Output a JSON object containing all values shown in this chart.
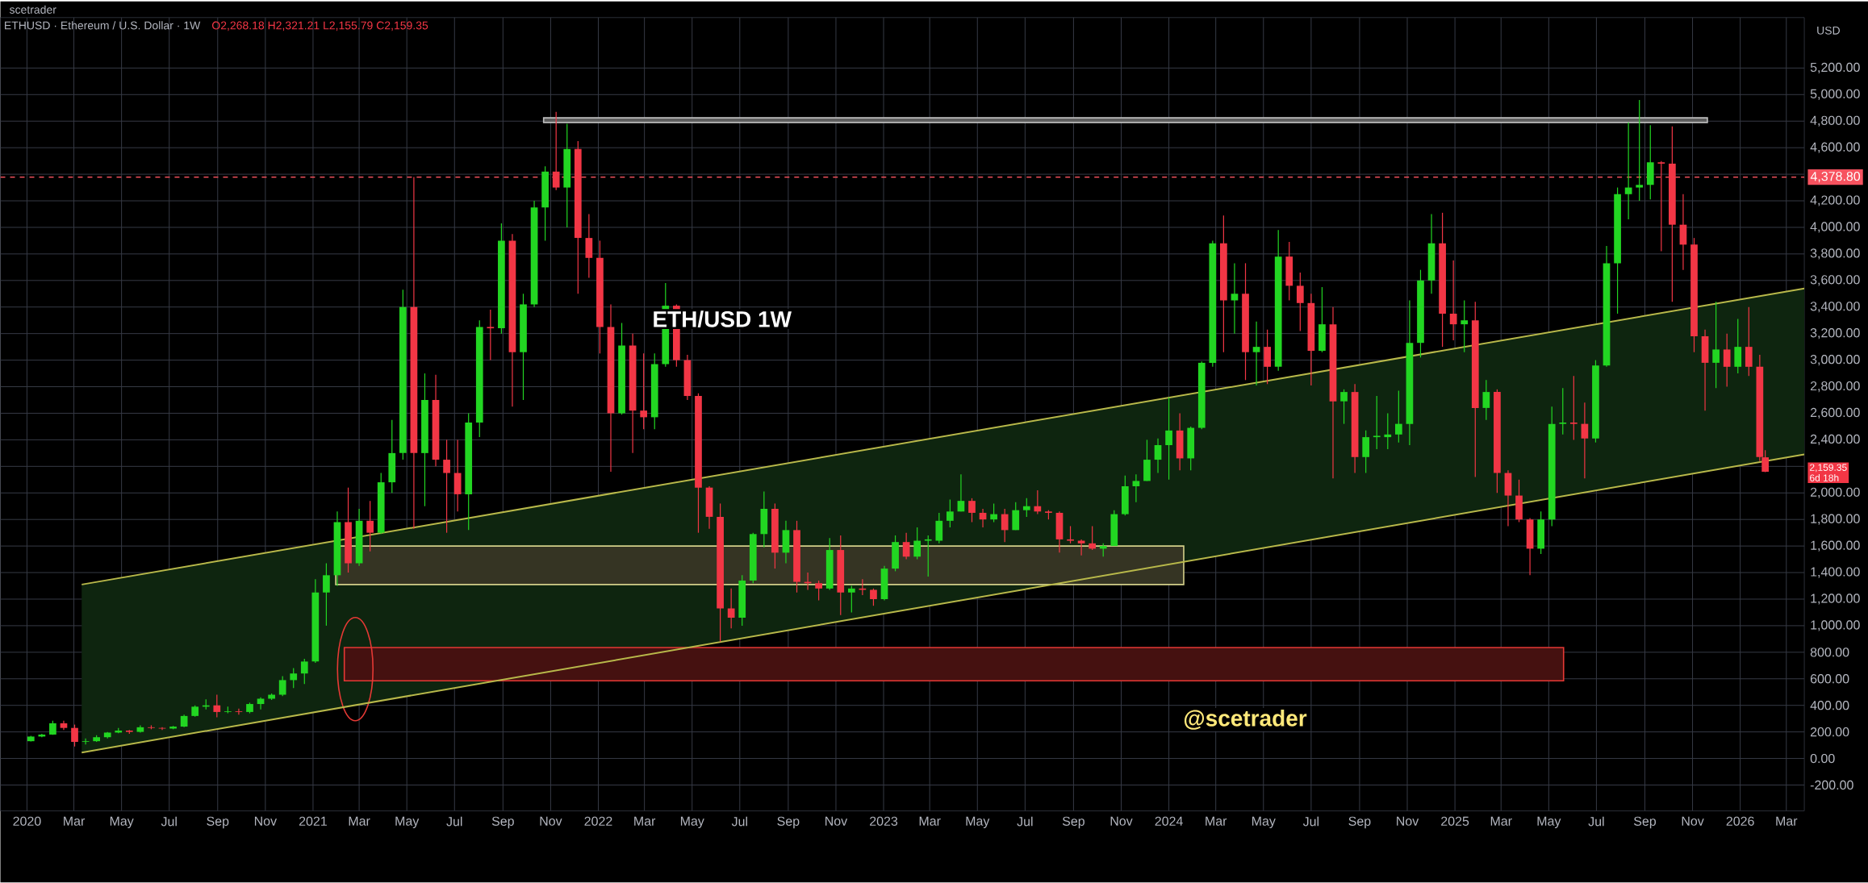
{
  "chart_data": {
    "type": "candlestick",
    "title": "ETHUSD · Ethereum / U.S. Dollar · 1W",
    "subtitle": "O2,268.18 H2,321.21 L2,155.79 C2,159.35",
    "ylabel": "USD",
    "annotations": [
      "scetrader",
      "ETH/USD  1W",
      "@scetrader",
      "2,159.35",
      "6d 18h"
    ],
    "grid": true,
    "xlim": [
      "2019-11-28",
      "2026-03-24"
    ],
    "ylim": [
      -395,
      5580
    ],
    "xticks": [
      {
        "value": "2020-01-01",
        "label": "2020"
      },
      {
        "value": "2020-03-01",
        "label": "Mar"
      },
      {
        "value": "2020-05-01",
        "label": "May"
      },
      {
        "value": "2020-07-01",
        "label": "Jul"
      },
      {
        "value": "2020-09-01",
        "label": "Sep"
      },
      {
        "value": "2020-11-01",
        "label": "Nov"
      },
      {
        "value": "2021-01-01",
        "label": "2021"
      },
      {
        "value": "2021-03-01",
        "label": "Mar"
      },
      {
        "value": "2021-05-01",
        "label": "May"
      },
      {
        "value": "2021-07-01",
        "label": "Jul"
      },
      {
        "value": "2021-09-01",
        "label": "Sep"
      },
      {
        "value": "2021-11-01",
        "label": "Nov"
      },
      {
        "value": "2022-01-01",
        "label": "2022"
      },
      {
        "value": "2022-03-01",
        "label": "Mar"
      },
      {
        "value": "2022-05-01",
        "label": "May"
      },
      {
        "value": "2022-07-01",
        "label": "Jul"
      },
      {
        "value": "2022-09-01",
        "label": "Sep"
      },
      {
        "value": "2022-11-01",
        "label": "Nov"
      },
      {
        "value": "2023-01-01",
        "label": "2023"
      },
      {
        "value": "2023-03-01",
        "label": "Mar"
      },
      {
        "value": "2023-05-01",
        "label": "May"
      },
      {
        "value": "2023-07-01",
        "label": "Jul"
      },
      {
        "value": "2023-09-01",
        "label": "Sep"
      },
      {
        "value": "2023-11-01",
        "label": "Nov"
      },
      {
        "value": "2024-01-01",
        "label": "2024"
      },
      {
        "value": "2024-03-01",
        "label": "Mar"
      },
      {
        "value": "2024-05-01",
        "label": "May"
      },
      {
        "value": "2024-07-01",
        "label": "Jul"
      },
      {
        "value": "2024-09-01",
        "label": "Sep"
      },
      {
        "value": "2024-11-01",
        "label": "Nov"
      },
      {
        "value": "2025-01-01",
        "label": "2025"
      },
      {
        "value": "2025-03-01",
        "label": "Mar"
      },
      {
        "value": "2025-05-01",
        "label": "May"
      },
      {
        "value": "2025-07-01",
        "label": "Jul"
      },
      {
        "value": "2025-09-01",
        "label": "Sep"
      },
      {
        "value": "2025-11-01",
        "label": "Nov"
      },
      {
        "value": "2026-01-01",
        "label": "2026"
      },
      {
        "value": "2026-03-01",
        "label": "Mar"
      }
    ],
    "yticks": [
      {
        "value": -200,
        "label": "-200.00"
      },
      {
        "value": 0,
        "label": "0.00"
      },
      {
        "value": 200,
        "label": "200.00"
      },
      {
        "value": 400,
        "label": "400.00"
      },
      {
        "value": 600,
        "label": "600.00"
      },
      {
        "value": 800,
        "label": "800.00"
      },
      {
        "value": 1000,
        "label": "1,000.00"
      },
      {
        "value": 1200,
        "label": "1,200.00"
      },
      {
        "value": 1400,
        "label": "1,400.00"
      },
      {
        "value": 1600,
        "label": "1,600.00"
      },
      {
        "value": 1800,
        "label": "1,800.00"
      },
      {
        "value": 2000,
        "label": "2,000.00"
      },
      {
        "value": 2200,
        "label": null
      },
      {
        "value": 2400,
        "label": "2,400.00"
      },
      {
        "value": 2600,
        "label": "2,600.00"
      },
      {
        "value": 2800,
        "label": "2,800.00"
      },
      {
        "value": 3000,
        "label": "3,000.00"
      },
      {
        "value": 3200,
        "label": "3,200.00"
      },
      {
        "value": 3400,
        "label": "3,400.00"
      },
      {
        "value": 3600,
        "label": "3,600.00"
      },
      {
        "value": 3800,
        "label": "3,800.00"
      },
      {
        "value": 4000,
        "label": "4,000.00"
      },
      {
        "value": 4200,
        "label": "4,200.00"
      },
      {
        "value": 4400,
        "label": null
      },
      {
        "value": 4600,
        "label": "4,600.00"
      },
      {
        "value": 4800,
        "label": "4,800.00"
      },
      {
        "value": 5000,
        "label": "5,000.00"
      },
      {
        "value": 5200,
        "label": "5,200.00"
      }
    ],
    "ref_lines": [
      {
        "axis": "y",
        "value": 4378.8,
        "label": "4,378.80",
        "color": "#f7525f",
        "line_style": "dashed"
      }
    ],
    "bands": [
      {
        "axis": "y",
        "from": 1310,
        "to": 1600,
        "color": "#d4d08a"
      },
      {
        "axis": "y",
        "from": 585,
        "to": 835,
        "color": "#e53935"
      },
      {
        "axis": "y",
        "from": 4790,
        "to": 4825,
        "color": "#bdbdbd"
      }
    ],
    "series": [
      {
        "type": "line",
        "color": "#b8b84a",
        "x": [
          "2020-03-11",
          "2026-03-24"
        ],
        "values": [
          1310,
          3540
        ],
        "lower": [
          45,
          2290
        ],
        "upper": [
          1310,
          3540
        ]
      },
      {
        "type": "line",
        "color": "#b8b84a",
        "x": [
          "2020-03-11",
          "2026-03-24"
        ],
        "values": [
          45,
          2290
        ]
      }
    ],
    "x": [
      "2020-01-06",
      "2020-01-20",
      "2020-02-03",
      "2020-02-17",
      "2020-03-02",
      "2020-03-16",
      "2020-03-30",
      "2020-04-13",
      "2020-04-27",
      "2020-05-11",
      "2020-05-25",
      "2020-06-08",
      "2020-06-22",
      "2020-07-06",
      "2020-07-20",
      "2020-08-03",
      "2020-08-17",
      "2020-08-31",
      "2020-09-14",
      "2020-09-28",
      "2020-10-12",
      "2020-10-26",
      "2020-11-09",
      "2020-11-23",
      "2020-12-07",
      "2020-12-21",
      "2021-01-04",
      "2021-01-18",
      "2021-02-01",
      "2021-02-15",
      "2021-03-01",
      "2021-03-15",
      "2021-03-29",
      "2021-04-12",
      "2021-04-26",
      "2021-05-10",
      "2021-05-24",
      "2021-06-07",
      "2021-06-21",
      "2021-07-05",
      "2021-07-19",
      "2021-08-02",
      "2021-08-16",
      "2021-08-30",
      "2021-09-13",
      "2021-09-27",
      "2021-10-11",
      "2021-10-25",
      "2021-11-08",
      "2021-11-22",
      "2021-12-06",
      "2021-12-20",
      "2022-01-03",
      "2022-01-17",
      "2022-01-31",
      "2022-02-14",
      "2022-02-28",
      "2022-03-14",
      "2022-03-28",
      "2022-04-11",
      "2022-04-25",
      "2022-05-09",
      "2022-05-23",
      "2022-06-06",
      "2022-06-20",
      "2022-07-04",
      "2022-07-18",
      "2022-08-01",
      "2022-08-15",
      "2022-08-29",
      "2022-09-12",
      "2022-09-26",
      "2022-10-10",
      "2022-10-24",
      "2022-11-07",
      "2022-11-21",
      "2022-12-05",
      "2022-12-19",
      "2023-01-02",
      "2023-01-16",
      "2023-01-30",
      "2023-02-13",
      "2023-02-27",
      "2023-03-13",
      "2023-03-27",
      "2023-04-10",
      "2023-04-24",
      "2023-05-08",
      "2023-05-22",
      "2023-06-05",
      "2023-06-19",
      "2023-07-03",
      "2023-07-17",
      "2023-07-31",
      "2023-08-14",
      "2023-08-28",
      "2023-09-11",
      "2023-09-25",
      "2023-10-09",
      "2023-10-23",
      "2023-11-06",
      "2023-11-20",
      "2023-12-04",
      "2023-12-18",
      "2024-01-01",
      "2024-01-15",
      "2024-01-29",
      "2024-02-12",
      "2024-02-26",
      "2024-03-11",
      "2024-03-25",
      "2024-04-08",
      "2024-04-22",
      "2024-05-06",
      "2024-05-20",
      "2024-06-03",
      "2024-06-17",
      "2024-07-01",
      "2024-07-15",
      "2024-07-29",
      "2024-08-12",
      "2024-08-26",
      "2024-09-09",
      "2024-09-23",
      "2024-10-07",
      "2024-10-21",
      "2024-11-04",
      "2024-11-18",
      "2024-12-02",
      "2024-12-16",
      "2024-12-30",
      "2025-01-13",
      "2025-01-27",
      "2025-02-10",
      "2025-02-24",
      "2025-03-10",
      "2025-03-24",
      "2025-04-07",
      "2025-04-21",
      "2025-05-05",
      "2025-05-19",
      "2025-06-02",
      "2025-06-16",
      "2025-06-30",
      "2025-07-14",
      "2025-07-28",
      "2025-08-11",
      "2025-08-25",
      "2025-09-08",
      "2025-09-22",
      "2025-10-06",
      "2025-10-20",
      "2025-11-03",
      "2025-11-17",
      "2025-12-01",
      "2025-12-15",
      "2025-12-29",
      "2026-01-12",
      "2026-01-26",
      "2026-02-02"
    ],
    "ohlc": [
      [
        130,
        170,
        128,
        165
      ],
      [
        165,
        185,
        160,
        180
      ],
      [
        180,
        285,
        178,
        265
      ],
      [
        265,
        285,
        215,
        230
      ],
      [
        230,
        255,
        90,
        125
      ],
      [
        125,
        150,
        105,
        130
      ],
      [
        130,
        175,
        125,
        160
      ],
      [
        160,
        200,
        150,
        195
      ],
      [
        195,
        230,
        190,
        210
      ],
      [
        210,
        215,
        185,
        200
      ],
      [
        200,
        250,
        195,
        235
      ],
      [
        235,
        250,
        220,
        230
      ],
      [
        230,
        235,
        215,
        225
      ],
      [
        225,
        245,
        220,
        240
      ],
      [
        240,
        330,
        235,
        320
      ],
      [
        320,
        400,
        315,
        390
      ],
      [
        390,
        445,
        370,
        400
      ],
      [
        400,
        480,
        310,
        350
      ],
      [
        350,
        390,
        340,
        355
      ],
      [
        355,
        375,
        330,
        350
      ],
      [
        350,
        420,
        340,
        410
      ],
      [
        410,
        460,
        370,
        450
      ],
      [
        450,
        490,
        440,
        480
      ],
      [
        480,
        620,
        470,
        590
      ],
      [
        590,
        680,
        530,
        640
      ],
      [
        640,
        750,
        560,
        730
      ],
      [
        730,
        1350,
        720,
        1250
      ],
      [
        1250,
        1470,
        1000,
        1380
      ],
      [
        1380,
        1860,
        1300,
        1780
      ],
      [
        1780,
        2040,
        1400,
        1470
      ],
      [
        1470,
        1880,
        1450,
        1790
      ],
      [
        1790,
        1940,
        1560,
        1700
      ],
      [
        1700,
        2150,
        1690,
        2080
      ],
      [
        2080,
        2550,
        2000,
        2300
      ],
      [
        2300,
        3530,
        2250,
        3400
      ],
      [
        3400,
        4380,
        1730,
        2300
      ],
      [
        2300,
        2900,
        1900,
        2700
      ],
      [
        2700,
        2890,
        2200,
        2250
      ],
      [
        2250,
        2400,
        1700,
        2150
      ],
      [
        2150,
        2400,
        1860,
        1990
      ],
      [
        1990,
        2600,
        1720,
        2530
      ],
      [
        2530,
        3300,
        2420,
        3250
      ],
      [
        3250,
        3380,
        3000,
        3240
      ],
      [
        3240,
        4030,
        3200,
        3900
      ],
      [
        3900,
        3950,
        2650,
        3060
      ],
      [
        3060,
        3500,
        2700,
        3420
      ],
      [
        3420,
        4200,
        3400,
        4150
      ],
      [
        4150,
        4460,
        3900,
        4420
      ],
      [
        4420,
        4870,
        4280,
        4300
      ],
      [
        4300,
        4780,
        4000,
        4590
      ],
      [
        4590,
        4650,
        3500,
        3920
      ],
      [
        3920,
        4100,
        3620,
        3770
      ],
      [
        3770,
        3900,
        3050,
        3250
      ],
      [
        3250,
        3420,
        2160,
        2600
      ],
      [
        2600,
        3280,
        2590,
        3110
      ],
      [
        3110,
        3200,
        2300,
        2620
      ],
      [
        2620,
        3050,
        2480,
        2570
      ],
      [
        2570,
        3050,
        2480,
        2970
      ],
      [
        2970,
        3580,
        2950,
        3410
      ],
      [
        3410,
        3420,
        2950,
        3000
      ],
      [
        3000,
        3040,
        2700,
        2730
      ],
      [
        2730,
        2750,
        1700,
        2040
      ],
      [
        2040,
        2050,
        1730,
        1820
      ],
      [
        1820,
        1920,
        880,
        1130
      ],
      [
        1130,
        1280,
        980,
        1060
      ],
      [
        1060,
        1380,
        1000,
        1340
      ],
      [
        1340,
        1700,
        1320,
        1690
      ],
      [
        1690,
        2010,
        1590,
        1880
      ],
      [
        1880,
        1920,
        1430,
        1550
      ],
      [
        1550,
        1790,
        1470,
        1720
      ],
      [
        1720,
        1790,
        1250,
        1330
      ],
      [
        1330,
        1400,
        1270,
        1320
      ],
      [
        1320,
        1340,
        1190,
        1280
      ],
      [
        1280,
        1660,
        1270,
        1570
      ],
      [
        1570,
        1680,
        1080,
        1250
      ],
      [
        1250,
        1300,
        1100,
        1280
      ],
      [
        1280,
        1350,
        1230,
        1270
      ],
      [
        1270,
        1280,
        1150,
        1200
      ],
      [
        1200,
        1450,
        1190,
        1430
      ],
      [
        1430,
        1680,
        1410,
        1630
      ],
      [
        1630,
        1700,
        1500,
        1520
      ],
      [
        1520,
        1740,
        1500,
        1640
      ],
      [
        1640,
        1680,
        1370,
        1650
      ],
      [
        1640,
        1850,
        1620,
        1790
      ],
      [
        1790,
        1950,
        1740,
        1860
      ],
      [
        1860,
        2140,
        1860,
        1940
      ],
      [
        1940,
        1960,
        1780,
        1850
      ],
      [
        1850,
        1880,
        1740,
        1800
      ],
      [
        1800,
        1920,
        1780,
        1840
      ],
      [
        1840,
        1880,
        1630,
        1720
      ],
      [
        1720,
        1930,
        1720,
        1870
      ],
      [
        1870,
        1960,
        1820,
        1900
      ],
      [
        1900,
        2020,
        1840,
        1860
      ],
      [
        1860,
        1870,
        1800,
        1850
      ],
      [
        1850,
        1860,
        1550,
        1650
      ],
      [
        1650,
        1750,
        1620,
        1640
      ],
      [
        1640,
        1650,
        1530,
        1620
      ],
      [
        1620,
        1750,
        1570,
        1580
      ],
      [
        1580,
        1620,
        1520,
        1600
      ],
      [
        1600,
        1870,
        1600,
        1840
      ],
      [
        1840,
        2130,
        1830,
        2050
      ],
      [
        2050,
        2140,
        1930,
        2090
      ],
      [
        2090,
        2400,
        2090,
        2250
      ],
      [
        2250,
        2410,
        2150,
        2360
      ],
      [
        2360,
        2720,
        2100,
        2470
      ],
      [
        2470,
        2600,
        2170,
        2260
      ],
      [
        2260,
        2500,
        2170,
        2490
      ],
      [
        2490,
        2990,
        2480,
        2980
      ],
      [
        2980,
        3900,
        2950,
        3880
      ],
      [
        3880,
        4090,
        3060,
        3450
      ],
      [
        3450,
        3730,
        3200,
        3500
      ],
      [
        3500,
        3730,
        2850,
        3060
      ],
      [
        3060,
        3290,
        2810,
        3100
      ],
      [
        3100,
        3230,
        2820,
        2950
      ],
      [
        2950,
        3980,
        2920,
        3780
      ],
      [
        3780,
        3890,
        3450,
        3560
      ],
      [
        3560,
        3660,
        3220,
        3430
      ],
      [
        3430,
        3500,
        2810,
        3070
      ],
      [
        3070,
        3550,
        3060,
        3270
      ],
      [
        3270,
        3400,
        2110,
        2690
      ],
      [
        2690,
        2780,
        2520,
        2760
      ],
      [
        2760,
        2820,
        2150,
        2270
      ],
      [
        2270,
        2470,
        2150,
        2420
      ],
      [
        2420,
        2730,
        2330,
        2430
      ],
      [
        2420,
        2600,
        2330,
        2440
      ],
      [
        2440,
        2770,
        2380,
        2520
      ],
      [
        2520,
        3450,
        2360,
        3130
      ],
      [
        3130,
        3680,
        3020,
        3600
      ],
      [
        3600,
        4100,
        3500,
        3880
      ],
      [
        3880,
        4110,
        3100,
        3350
      ],
      [
        3350,
        3750,
        3150,
        3270
      ],
      [
        3270,
        3450,
        3060,
        3300
      ],
      [
        3300,
        3440,
        2120,
        2640
      ],
      [
        2640,
        2850,
        2550,
        2760
      ],
      [
        2760,
        2780,
        2000,
        2150
      ],
      [
        2150,
        2170,
        1750,
        1980
      ],
      [
        1980,
        2100,
        1780,
        1800
      ],
      [
        1800,
        1810,
        1380,
        1580
      ],
      [
        1580,
        1860,
        1540,
        1800
      ],
      [
        1800,
        2650,
        1750,
        2520
      ],
      [
        2520,
        2790,
        2440,
        2530
      ],
      [
        2530,
        2880,
        2400,
        2520
      ],
      [
        2520,
        2680,
        2110,
        2410
      ],
      [
        2410,
        3000,
        2380,
        2960
      ],
      [
        2960,
        3860,
        2950,
        3730
      ],
      [
        3730,
        4300,
        3350,
        4250
      ],
      [
        4250,
        4790,
        4060,
        4300
      ],
      [
        4300,
        4960,
        4200,
        4320
      ],
      [
        4320,
        4770,
        4210,
        4490
      ],
      [
        4490,
        4500,
        3820,
        4480
      ],
      [
        4480,
        4760,
        3440,
        4020
      ],
      [
        4020,
        4250,
        3680,
        3870
      ],
      [
        3870,
        3920,
        3060,
        3180
      ],
      [
        3180,
        3230,
        2620,
        2980
      ],
      [
        2980,
        3440,
        2790,
        3080
      ],
      [
        3080,
        3200,
        2800,
        2950
      ],
      [
        2950,
        3310,
        2900,
        3100
      ],
      [
        3100,
        3400,
        2880,
        2950
      ],
      [
        2950,
        3040,
        2240,
        2270
      ],
      [
        2268.18,
        2321.21,
        2155.79,
        2159.35
      ]
    ]
  }
}
